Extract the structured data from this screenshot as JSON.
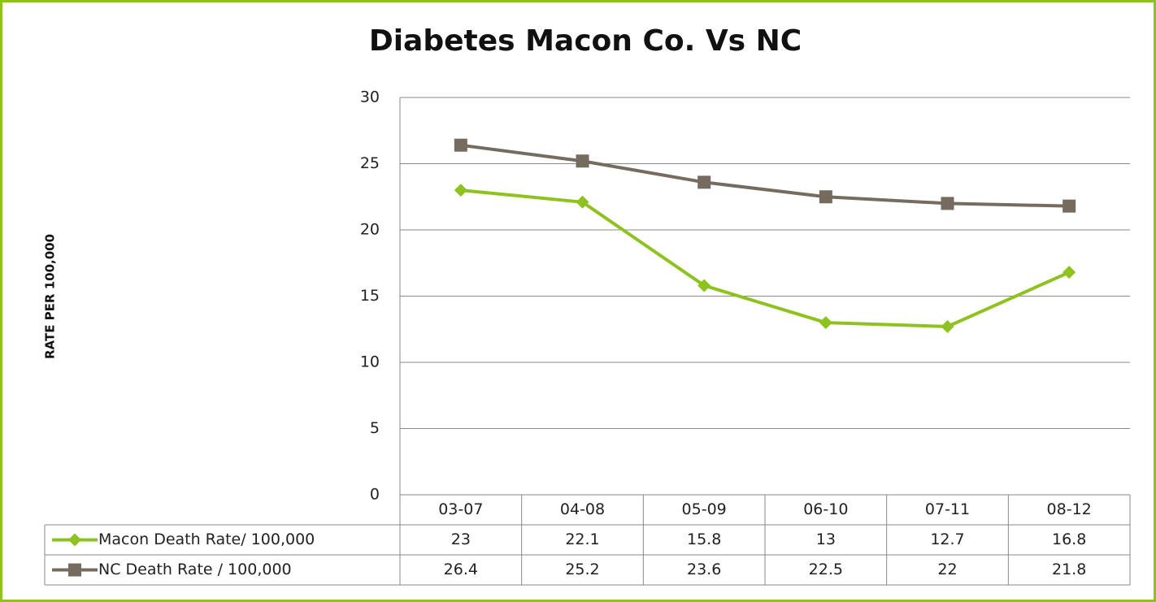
{
  "chart_data": {
    "type": "line",
    "title": "Diabetes Macon Co. Vs NC",
    "y_label": "RATE PER 100,000",
    "categories": [
      "03-07",
      "04-08",
      "05-09",
      "06-10",
      "07-11",
      "08-12"
    ],
    "series": [
      {
        "name": "Macon Death Rate/ 100,000",
        "color": "#8dc21f",
        "marker": "diamond",
        "values": [
          23,
          22.1,
          15.8,
          13,
          12.7,
          16.8
        ]
      },
      {
        "name": "NC Death Rate / 100,000",
        "color": "#756b5e",
        "marker": "square",
        "values": [
          26.4,
          25.2,
          23.6,
          22.5,
          22,
          21.8
        ]
      }
    ],
    "ylim": [
      0,
      30
    ],
    "yticks": [
      0,
      5,
      10,
      15,
      20,
      25,
      30
    ],
    "grid": true
  }
}
